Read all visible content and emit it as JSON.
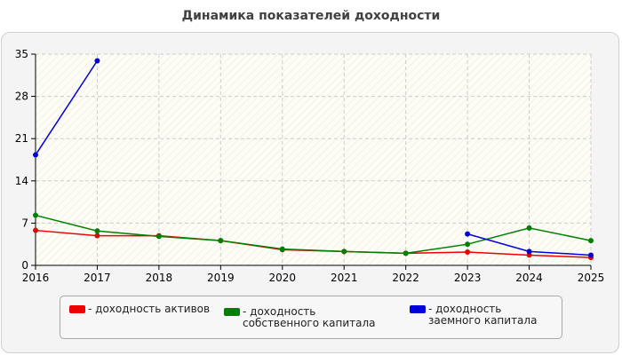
{
  "chart_data": {
    "type": "line",
    "title": "Динамика показателей доходности",
    "x": [
      "2016",
      "2017",
      "2018",
      "2019",
      "2020",
      "2021",
      "2022",
      "2023",
      "2024",
      "2025"
    ],
    "ylim": [
      0,
      35
    ],
    "yticks": [
      0,
      7,
      14,
      21,
      28,
      35
    ],
    "grid": true,
    "legend_position": "bottom",
    "series": [
      {
        "name": "- доходность активов",
        "color": "#ee0000",
        "values": [
          5.8,
          4.9,
          4.9,
          4.1,
          2.6,
          2.3,
          2.0,
          2.2,
          1.7,
          1.3
        ]
      },
      {
        "name": "- доходность собственного капитала",
        "color": "#008000",
        "values": [
          8.3,
          5.7,
          4.8,
          4.1,
          2.7,
          2.3,
          2.0,
          3.5,
          6.2,
          4.1
        ]
      },
      {
        "name": "- доходность заемного капитала",
        "color": "#0000dd",
        "values": [
          18.3,
          33.9,
          null,
          null,
          null,
          null,
          null,
          5.2,
          2.3,
          1.7
        ]
      }
    ]
  }
}
